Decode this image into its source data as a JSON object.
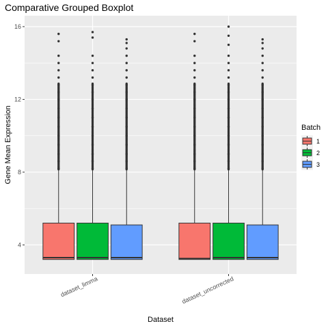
{
  "chart_data": {
    "type": "boxplot",
    "title": "Comparative Grouped Boxplot",
    "xlabel": "Dataset",
    "ylabel": "Gene Mean Expression",
    "categories": [
      "dataset_limma",
      "dataset_uncorrected"
    ],
    "ylim": [
      2.4,
      16.6
    ],
    "yticks": [
      4,
      8,
      12,
      16
    ],
    "ytick_labels": [
      "4",
      "8",
      "12",
      "16"
    ],
    "grid": true,
    "legend": {
      "title": "Batch",
      "position": "right",
      "entries": [
        "1",
        "2",
        "3"
      ]
    },
    "series": [
      {
        "name": "1",
        "color": "#F8766D",
        "boxes": [
          {
            "category": "dataset_limma",
            "lower_whisker": 3.2,
            "q1": 3.2,
            "median": 3.3,
            "q3": 5.2,
            "upper_whisker": 8.1,
            "outliers": [
              8.2,
              8.6,
              9.0,
              9.5,
              10.0,
              10.5,
              11.0,
              11.5,
              12.0,
              12.4,
              12.8,
              13.2,
              13.6,
              14.0,
              14.4,
              15.2,
              15.6
            ]
          },
          {
            "category": "dataset_uncorrected",
            "lower_whisker": 3.2,
            "q1": 3.2,
            "median": 3.25,
            "q3": 5.2,
            "upper_whisker": 8.1,
            "outliers": [
              8.2,
              8.6,
              9.0,
              9.5,
              10.0,
              10.5,
              11.0,
              11.5,
              12.0,
              12.4,
              12.8,
              13.2,
              13.6,
              14.0,
              14.4,
              15.2,
              15.6
            ]
          }
        ]
      },
      {
        "name": "2",
        "color": "#00BA38",
        "boxes": [
          {
            "category": "dataset_limma",
            "lower_whisker": 3.2,
            "q1": 3.2,
            "median": 3.3,
            "q3": 5.2,
            "upper_whisker": 8.1,
            "outliers": [
              8.2,
              8.6,
              9.0,
              9.5,
              10.0,
              10.5,
              11.0,
              11.5,
              12.0,
              12.4,
              12.8,
              13.2,
              13.6,
              14.0,
              14.4,
              15.4,
              15.7
            ]
          },
          {
            "category": "dataset_uncorrected",
            "lower_whisker": 3.2,
            "q1": 3.2,
            "median": 3.3,
            "q3": 5.2,
            "upper_whisker": 8.1,
            "outliers": [
              8.2,
              8.6,
              9.0,
              9.5,
              10.0,
              10.5,
              11.0,
              11.5,
              12.0,
              12.4,
              12.8,
              13.2,
              13.6,
              14.0,
              14.4,
              15.0,
              15.5,
              16.0
            ]
          }
        ]
      },
      {
        "name": "3",
        "color": "#619CFF",
        "boxes": [
          {
            "category": "dataset_limma",
            "lower_whisker": 3.2,
            "q1": 3.2,
            "median": 3.3,
            "q3": 5.1,
            "upper_whisker": 8.1,
            "outliers": [
              8.2,
              8.6,
              9.0,
              9.5,
              10.0,
              10.5,
              11.0,
              11.5,
              12.0,
              12.4,
              12.8,
              13.2,
              13.6,
              14.0,
              14.4,
              14.8,
              15.1,
              15.3
            ]
          },
          {
            "category": "dataset_uncorrected",
            "lower_whisker": 3.2,
            "q1": 3.2,
            "median": 3.3,
            "q3": 5.1,
            "upper_whisker": 8.1,
            "outliers": [
              8.2,
              8.6,
              9.0,
              9.5,
              10.0,
              10.5,
              11.0,
              11.5,
              12.0,
              12.4,
              12.8,
              13.2,
              13.6,
              14.0,
              14.4,
              14.8,
              15.1,
              15.3
            ]
          }
        ]
      }
    ]
  }
}
